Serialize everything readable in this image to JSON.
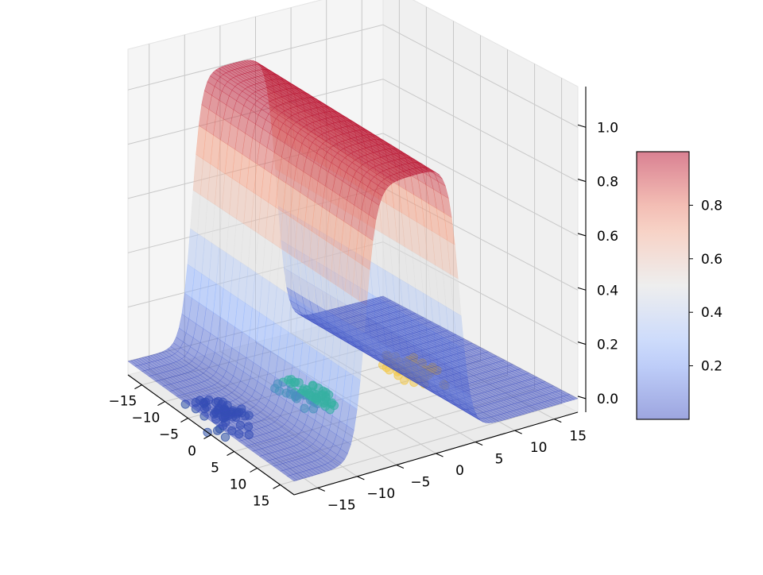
{
  "chart_data": {
    "type": "surface3d",
    "title": "",
    "x_axis": {
      "label": "",
      "range": [
        -18,
        18
      ],
      "ticks": [
        -15,
        -10,
        -5,
        0,
        5,
        10,
        15
      ],
      "tick_labels": [
        "−15",
        "−10",
        "−5",
        "0",
        "5",
        "10",
        "15"
      ]
    },
    "y_axis": {
      "label": "",
      "range": [
        -18,
        18
      ],
      "ticks": [
        -15,
        -10,
        -5,
        0,
        5,
        10,
        15
      ],
      "tick_labels": [
        "−15",
        "−10",
        "−5",
        "0",
        "5",
        "10",
        "15"
      ]
    },
    "z_axis": {
      "label": "",
      "range": [
        -0.05,
        1.15
      ],
      "ticks": [
        0.0,
        0.2,
        0.4,
        0.6,
        0.8,
        1.0
      ],
      "tick_labels": [
        "0.0",
        "0.2",
        "0.4",
        "0.6",
        "0.8",
        "1.0"
      ]
    },
    "surface": {
      "function": "logistic plateau: z is near 0 at both ends of the y axis and near 1 between y = -9 and y = 3, independent of x",
      "x_range": [
        -18,
        18
      ],
      "y_range": [
        -18,
        18
      ],
      "plateau_y": [
        -9,
        3
      ],
      "colormap": "coolwarm",
      "alpha": 0.5
    },
    "scatter": [
      {
        "cluster": "dark blue",
        "color": "#2d50a8",
        "points": 60,
        "center_x": -1,
        "center_y": -16,
        "spread": 1.5,
        "z": 0.0
      },
      {
        "cluster": "teal",
        "color": "#36b1a3",
        "points": 60,
        "center_x": 0,
        "center_y": -5,
        "spread": 1.5,
        "z": 0.0
      },
      {
        "cluster": "yellow",
        "color": "#f2c94c",
        "points": 60,
        "center_x": 1,
        "center_y": 8,
        "spread": 1.5,
        "z": 0.0
      }
    ],
    "colorbar": {
      "ticks": [
        0.2,
        0.4,
        0.6,
        0.8
      ],
      "tick_labels": [
        "0.2",
        "0.4",
        "0.6",
        "0.8"
      ],
      "range": [
        0.0,
        1.0
      ],
      "colormap": "coolwarm",
      "placement": "right"
    },
    "grid": true
  }
}
